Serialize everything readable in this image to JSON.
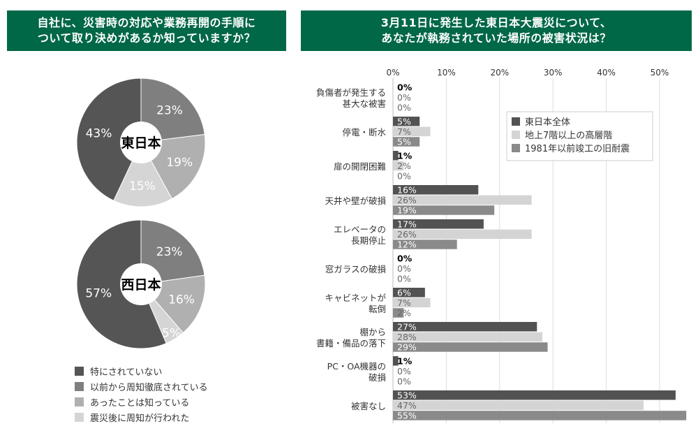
{
  "left_panel": {
    "title_line1": "自社に、災害時の対応や業務再開の手順に",
    "title_line2": "ついて取り決めがあるか知っていますか？"
  },
  "right_panel": {
    "title_line1": "3月11日に発生した東日本大震災について、",
    "title_line2": "あなたが執務されていた場所の被害状況は？"
  },
  "chart_data": [
    {
      "type": "pie",
      "center_label": "東日本",
      "categories": [
        "以前から周知徹底されている",
        "あったことは知っている",
        "震災後に周知が行われた",
        "特にされていない"
      ],
      "values": [
        23,
        19,
        15,
        43
      ],
      "value_labels": [
        "23%",
        "19%",
        "15%",
        "43%"
      ],
      "colors": [
        "#7f7f7f",
        "#b0b0b0",
        "#d5d5d5",
        "#555555"
      ]
    },
    {
      "type": "pie",
      "center_label": "西日本",
      "categories": [
        "以前から周知徹底されている",
        "あったことは知っている",
        "震災後に周知が行われた",
        "特にされていない"
      ],
      "values": [
        23,
        16,
        5,
        57
      ],
      "value_labels": [
        "23%",
        "16%",
        "5%",
        "57%"
      ],
      "colors": [
        "#7f7f7f",
        "#b0b0b0",
        "#d5d5d5",
        "#555555"
      ]
    },
    {
      "type": "bar",
      "orientation": "horizontal",
      "categories": [
        "負傷者が発生する\n甚大な被害",
        "停電・断水",
        "扉の開閉困難",
        "天井や壁が破損",
        "エレベータの\n長期停止",
        "窓ガラスの破損",
        "キャビネットが\n転倒",
        "棚から\n書籍・備品の落下",
        "PC・OA機器の\n破損",
        "被害なし"
      ],
      "series": [
        {
          "name": "東日本全体",
          "color": "#525252",
          "values": [
            0,
            5,
            1,
            16,
            17,
            0,
            6,
            27,
            1,
            53
          ]
        },
        {
          "name": "地上7階以上の高層階",
          "color": "#d4d4d4",
          "values": [
            0,
            7,
            2,
            26,
            26,
            0,
            7,
            28,
            0,
            47
          ]
        },
        {
          "name": "1981年以前竣工の旧耐震",
          "color": "#8a8a8a",
          "values": [
            0,
            5,
            0,
            19,
            12,
            0,
            2,
            29,
            0,
            55
          ]
        }
      ],
      "xlim": [
        0,
        55
      ],
      "xticks": [
        "0%",
        "10%",
        "20%",
        "30%",
        "40%",
        "50%"
      ],
      "grid": true,
      "legend_position": "top-right"
    }
  ],
  "left_legend": [
    {
      "label": "特にされていない",
      "color": "#555555"
    },
    {
      "label": "以前から周知徹底されている",
      "color": "#7f7f7f"
    },
    {
      "label": "あったことは知っている",
      "color": "#b0b0b0"
    },
    {
      "label": "震災後に周知が行われた",
      "color": "#d5d5d5"
    }
  ]
}
